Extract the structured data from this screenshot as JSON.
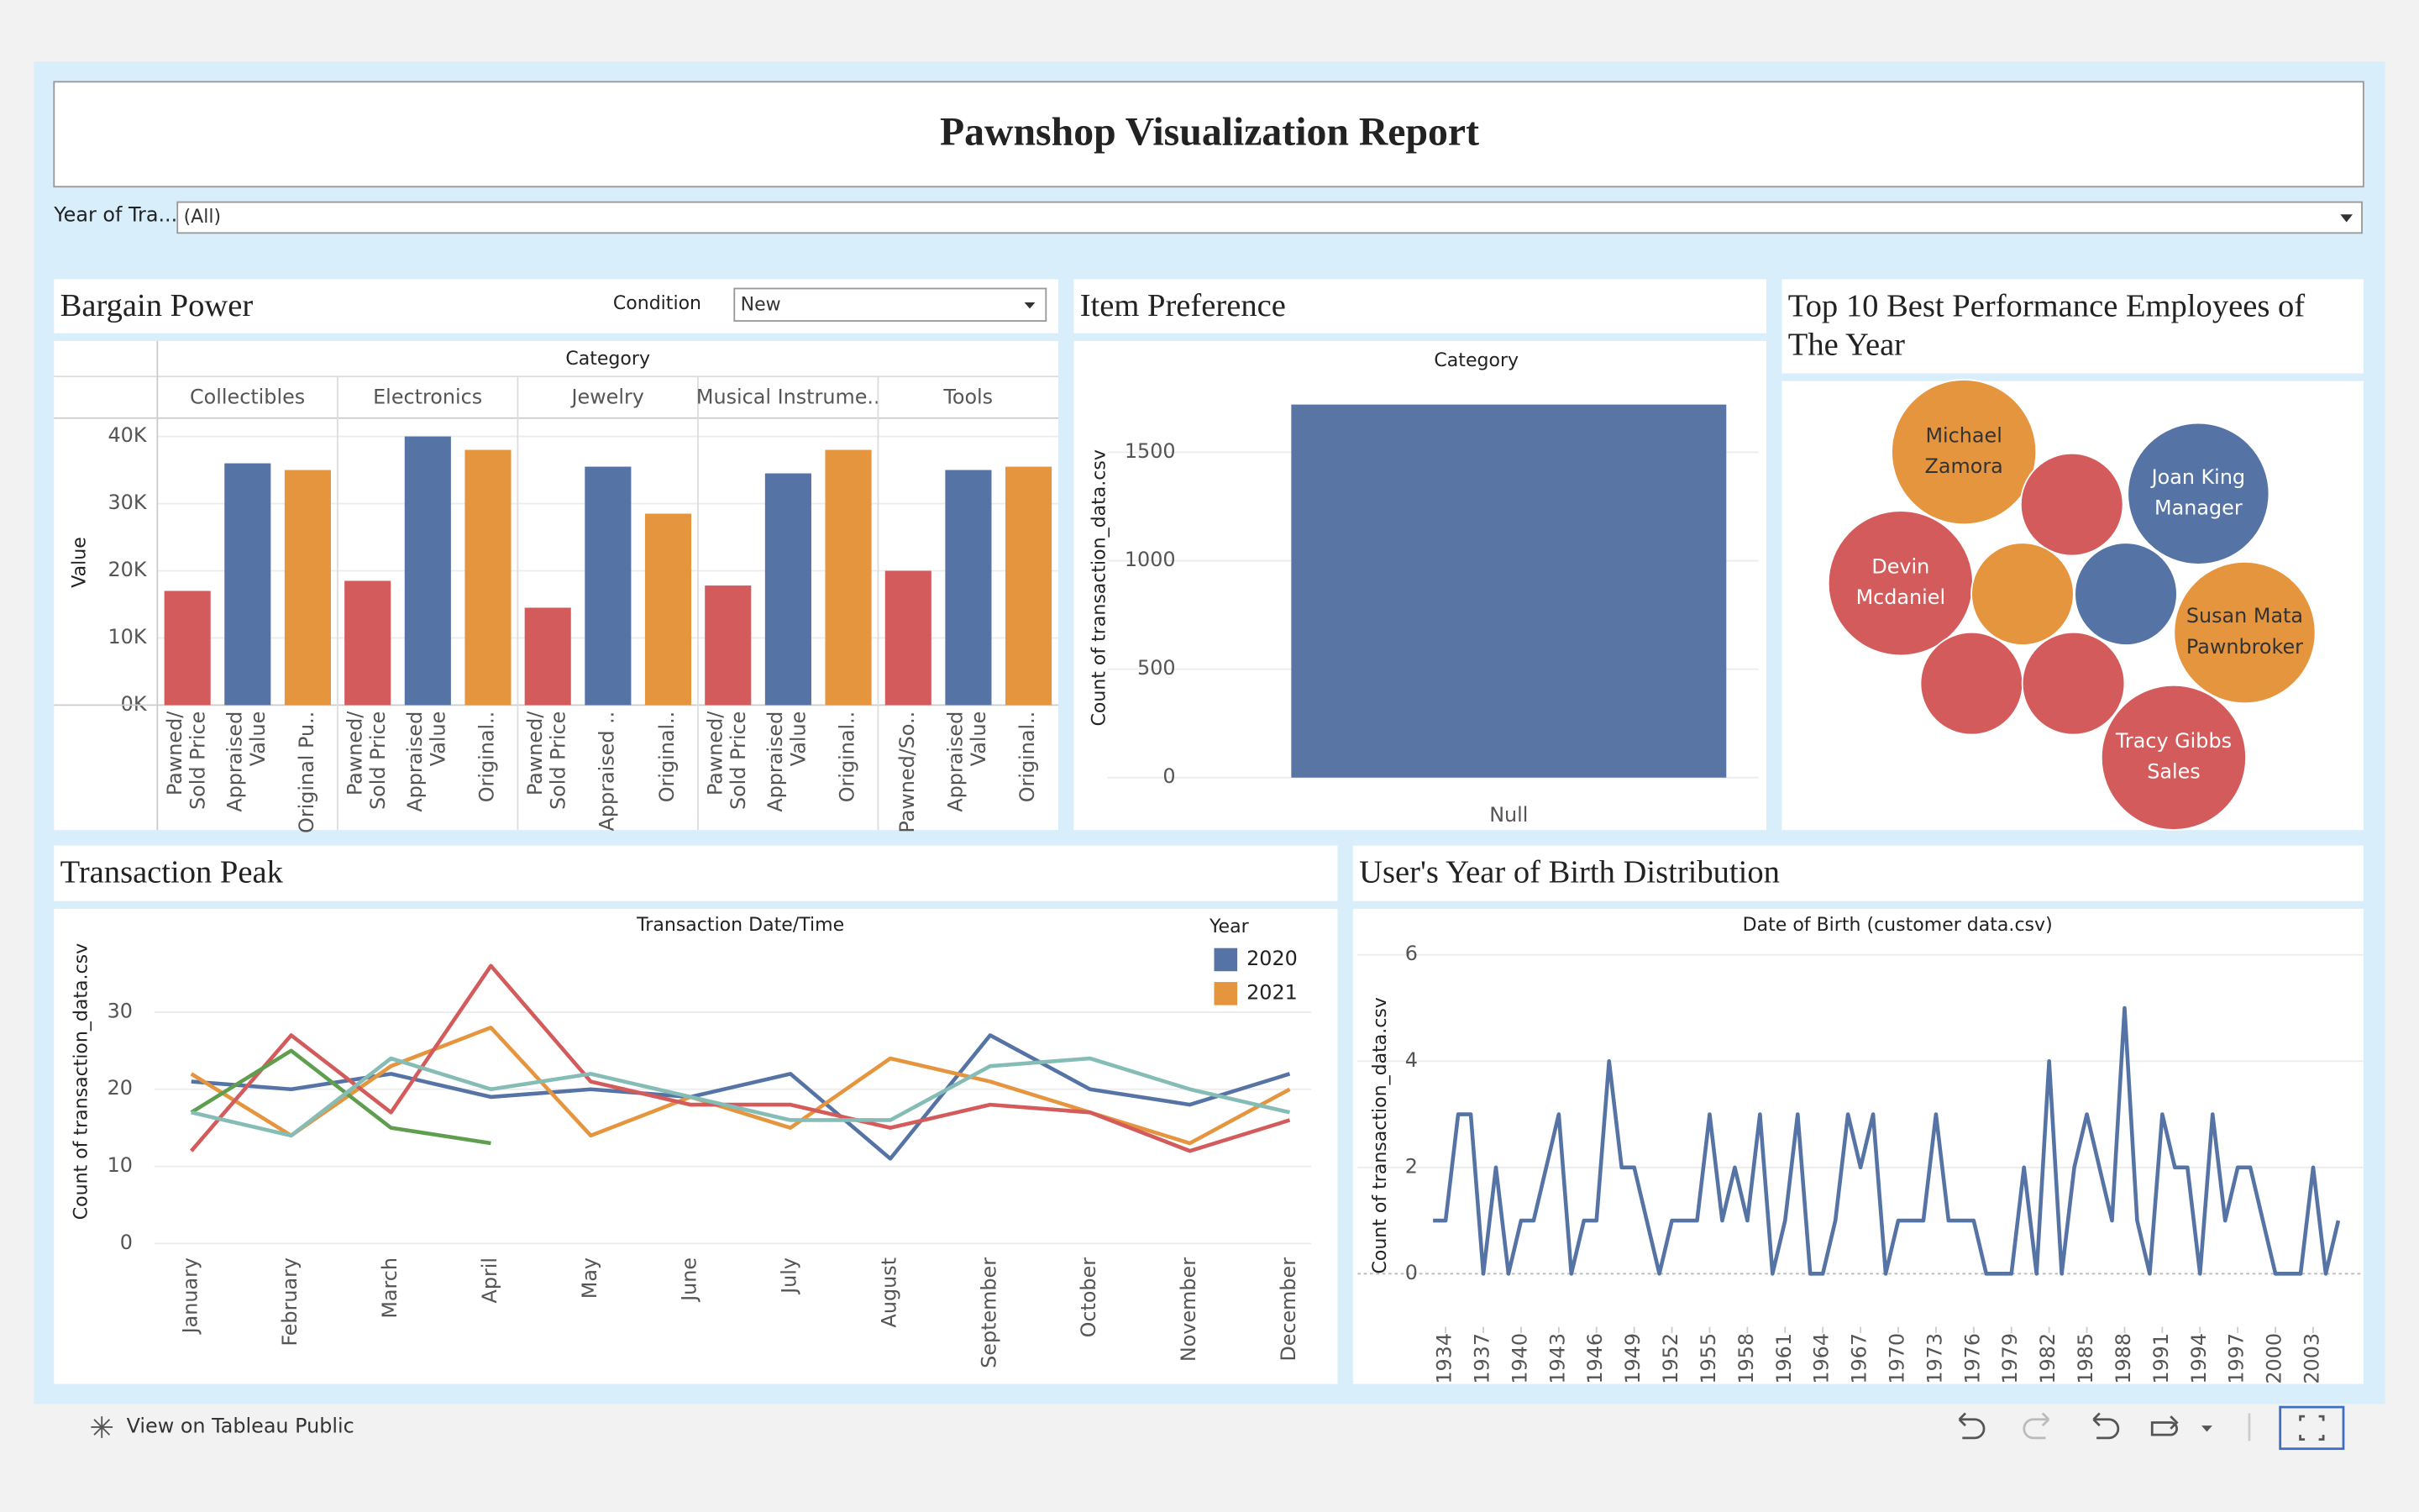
{
  "header": {
    "title": "Pawnshop Visualization Report"
  },
  "filter": {
    "label": "Year of Tra...",
    "value": "(All)"
  },
  "footer": {
    "link": "View on Tableau Public"
  },
  "chart_data": [
    {
      "type": "bar",
      "title": "Bargain Power",
      "filter_label": "Condition",
      "filter_value": "New",
      "header": "Category",
      "y_label": "Value",
      "categories": [
        "Collectibles",
        "Electronics",
        "Jewelry",
        "Musical Instrume..",
        "Tools"
      ],
      "bar_labels": [
        [
          [
            "Pawned/",
            "Sold Price"
          ],
          [
            "Appraised",
            "Value"
          ],
          [
            "Original Pu.."
          ]
        ],
        [
          [
            "Pawned/",
            "Sold Price"
          ],
          [
            "Appraised",
            "Value"
          ],
          [
            "Original.."
          ]
        ],
        [
          [
            "Pawned/",
            "Sold Price"
          ],
          [
            "Appraised .."
          ],
          [
            "Original.."
          ]
        ],
        [
          [
            "Pawned/",
            "Sold Price"
          ],
          [
            "Appraised",
            "Value"
          ],
          [
            "Original.."
          ]
        ],
        [
          [
            "Pawned/So.."
          ],
          [
            "Appraised",
            "Value"
          ],
          [
            "Original.."
          ]
        ]
      ],
      "series": [
        {
          "color": "#d45b5b",
          "values": [
            17000,
            18500,
            14500,
            17800,
            20000
          ]
        },
        {
          "color": "#5574a5",
          "values": [
            36000,
            40000,
            35500,
            34500,
            35000
          ]
        },
        {
          "color": "#e6953f",
          "values": [
            35000,
            38000,
            28500,
            38000,
            35500
          ]
        }
      ],
      "ylim": [
        0,
        42500
      ],
      "yticks": [
        {
          "value": 0,
          "label": "0K"
        },
        {
          "value": 10000,
          "label": "10K"
        },
        {
          "value": 20000,
          "label": "20K"
        },
        {
          "value": 30000,
          "label": "30K"
        },
        {
          "value": 40000,
          "label": "40K"
        }
      ],
      "grid": true
    },
    {
      "type": "bar",
      "title": "Item Preference",
      "header": "Category",
      "y_label": "Count of transaction_data.csv",
      "categories": [
        "Null"
      ],
      "values": [
        1720
      ],
      "color": "#5875a4",
      "ylim": [
        0,
        1750
      ],
      "yticks": [
        0,
        500,
        1000,
        1500
      ],
      "grid": true
    },
    {
      "type": "bubble",
      "title": "Top 10 Best Performance Employees of The Year",
      "bubbles": [
        {
          "label_lines": [
            "Michael",
            "Zamora"
          ],
          "value": 22,
          "color": "#e6953f"
        },
        {
          "value": 11,
          "color": "#d45b5b"
        },
        {
          "label_lines": [
            "Joan King",
            "Manager"
          ],
          "value": 21,
          "color": "#5574a5"
        },
        {
          "label_lines": [
            "Devin",
            "Mcdaniel"
          ],
          "value": 22,
          "color": "#d45b5b"
        },
        {
          "value": 11,
          "color": "#e6953f"
        },
        {
          "value": 11,
          "color": "#5574a5"
        },
        {
          "label_lines": [
            "Susan Mata",
            "Pawnbroker"
          ],
          "value": 21,
          "color": "#e6953f"
        },
        {
          "value": 11,
          "color": "#d45b5b"
        },
        {
          "value": 11,
          "color": "#d45b5b"
        },
        {
          "label_lines": [
            "Tracy Gibbs",
            "Sales"
          ],
          "value": 22,
          "color": "#d45b5b"
        }
      ]
    },
    {
      "type": "line",
      "title": "Transaction Peak",
      "header": "Transaction Date/Time",
      "y_label": "Count of transaction_data.csv",
      "legend_title": "Year",
      "categories": [
        "January",
        "February",
        "March",
        "April",
        "May",
        "June",
        "July",
        "August",
        "September",
        "October",
        "November",
        "December"
      ],
      "series": [
        {
          "name": "2020",
          "color": "#5574a5",
          "values": [
            21,
            20,
            22,
            19,
            20,
            19,
            22,
            11,
            27,
            20,
            18,
            22
          ]
        },
        {
          "name": "2021",
          "color": "#e6953f",
          "values": [
            22,
            14,
            23,
            28,
            14,
            19,
            15,
            24,
            21,
            17,
            13,
            20
          ]
        },
        {
          "color": "#d45b5b",
          "values": [
            12,
            27,
            17,
            36,
            21,
            18,
            18,
            15,
            18,
            17,
            12,
            16
          ]
        },
        {
          "color": "#5f9e4f",
          "values": [
            17,
            25,
            15,
            13,
            null,
            null,
            null,
            null,
            null,
            null,
            null,
            null
          ]
        },
        {
          "color": "#86bcb6",
          "values": [
            17,
            14,
            24,
            20,
            22,
            19,
            16,
            16,
            23,
            24,
            20,
            17
          ]
        }
      ],
      "ylim": [
        0,
        42
      ],
      "yticks": [
        0,
        10,
        20,
        30
      ],
      "grid": true
    },
    {
      "type": "line",
      "title": "User's Year of Birth Distribution",
      "header": "Date of Birth (customer data.csv)",
      "y_label": "Count of transaction_data.csv",
      "x": [
        1933,
        1934,
        1935,
        1936,
        1937,
        1938,
        1939,
        1940,
        1941,
        1942,
        1943,
        1944,
        1945,
        1946,
        1947,
        1948,
        1949,
        1950,
        1951,
        1952,
        1953,
        1954,
        1955,
        1956,
        1957,
        1958,
        1959,
        1960,
        1961,
        1962,
        1963,
        1964,
        1965,
        1966,
        1967,
        1968,
        1969,
        1970,
        1971,
        1972,
        1973,
        1974,
        1975,
        1976,
        1977,
        1978,
        1979,
        1980,
        1981,
        1982,
        1983,
        1984,
        1985,
        1986,
        1987,
        1988,
        1989,
        1990,
        1991,
        1992,
        1993,
        1994,
        1995,
        1996,
        1997,
        1998,
        1999,
        2000,
        2001,
        2002,
        2003,
        2004,
        2005
      ],
      "values": [
        1,
        1,
        3,
        3,
        0,
        2,
        0,
        1,
        1,
        2,
        3,
        0,
        1,
        1,
        4,
        2,
        2,
        1,
        0,
        1,
        1,
        1,
        3,
        1,
        2,
        1,
        3,
        0,
        1,
        3,
        0,
        0,
        1,
        3,
        2,
        3,
        0,
        1,
        1,
        1,
        3,
        1,
        1,
        1,
        0,
        0,
        0,
        2,
        0,
        4,
        0,
        2,
        3,
        2,
        1,
        5,
        1,
        0,
        3,
        2,
        2,
        0,
        3,
        1,
        2,
        2,
        1,
        0,
        0,
        0,
        2,
        0,
        1
      ],
      "color": "#5574a5",
      "xlim": [
        1927,
        2007
      ],
      "xticks": [
        1934,
        1937,
        1940,
        1943,
        1946,
        1949,
        1952,
        1955,
        1958,
        1961,
        1964,
        1967,
        1970,
        1973,
        1976,
        1979,
        1982,
        1985,
        1988,
        1991,
        1994,
        1997,
        2000,
        2003
      ],
      "ylim": [
        -1,
        6.2
      ],
      "yticks": [
        0,
        2,
        4,
        6
      ],
      "grid": true
    }
  ]
}
